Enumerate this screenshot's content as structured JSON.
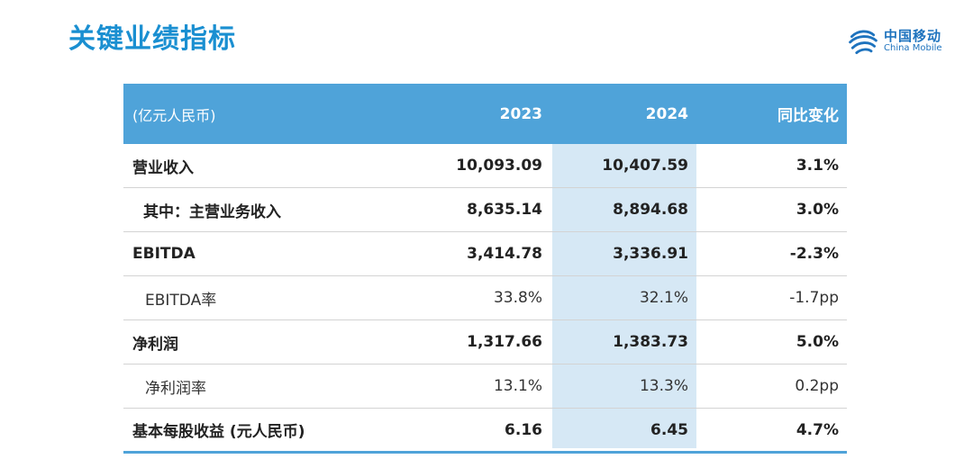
{
  "title": "关键业绩指标",
  "logo": {
    "cn": "中国移动",
    "en": "China Mobile"
  },
  "table": {
    "header": {
      "unit": "(亿元人民币)",
      "col2023": "2023",
      "col2024": "2024",
      "change": "同比变化"
    },
    "rows": [
      {
        "label": "营业收入",
        "v2023": "10,093.09",
        "v2024": "10,407.59",
        "change": "3.1%"
      },
      {
        "label": "其中：主营业务收入",
        "v2023": "8,635.14",
        "v2024": "8,894.68",
        "change": "3.0%"
      },
      {
        "label": "EBITDA",
        "v2023": "3,414.78",
        "v2024": "3,336.91",
        "change": "-2.3%"
      },
      {
        "label": "EBITDA率",
        "v2023": "33.8%",
        "v2024": "32.1%",
        "change": "-1.7pp"
      },
      {
        "label": "净利润",
        "v2023": "1,317.66",
        "v2024": "1,383.73",
        "change": "5.0%"
      },
      {
        "label": "净利润率",
        "v2023": "13.1%",
        "v2024": "13.3%",
        "change": "0.2pp"
      },
      {
        "label": "基本每股收益 (元人民币)",
        "v2023": "6.16",
        "v2024": "6.45",
        "change": "4.7%"
      }
    ]
  },
  "colors": {
    "accent": "#4fa3d9",
    "title": "#1a8fd1",
    "highlight": "#d6e8f5"
  }
}
